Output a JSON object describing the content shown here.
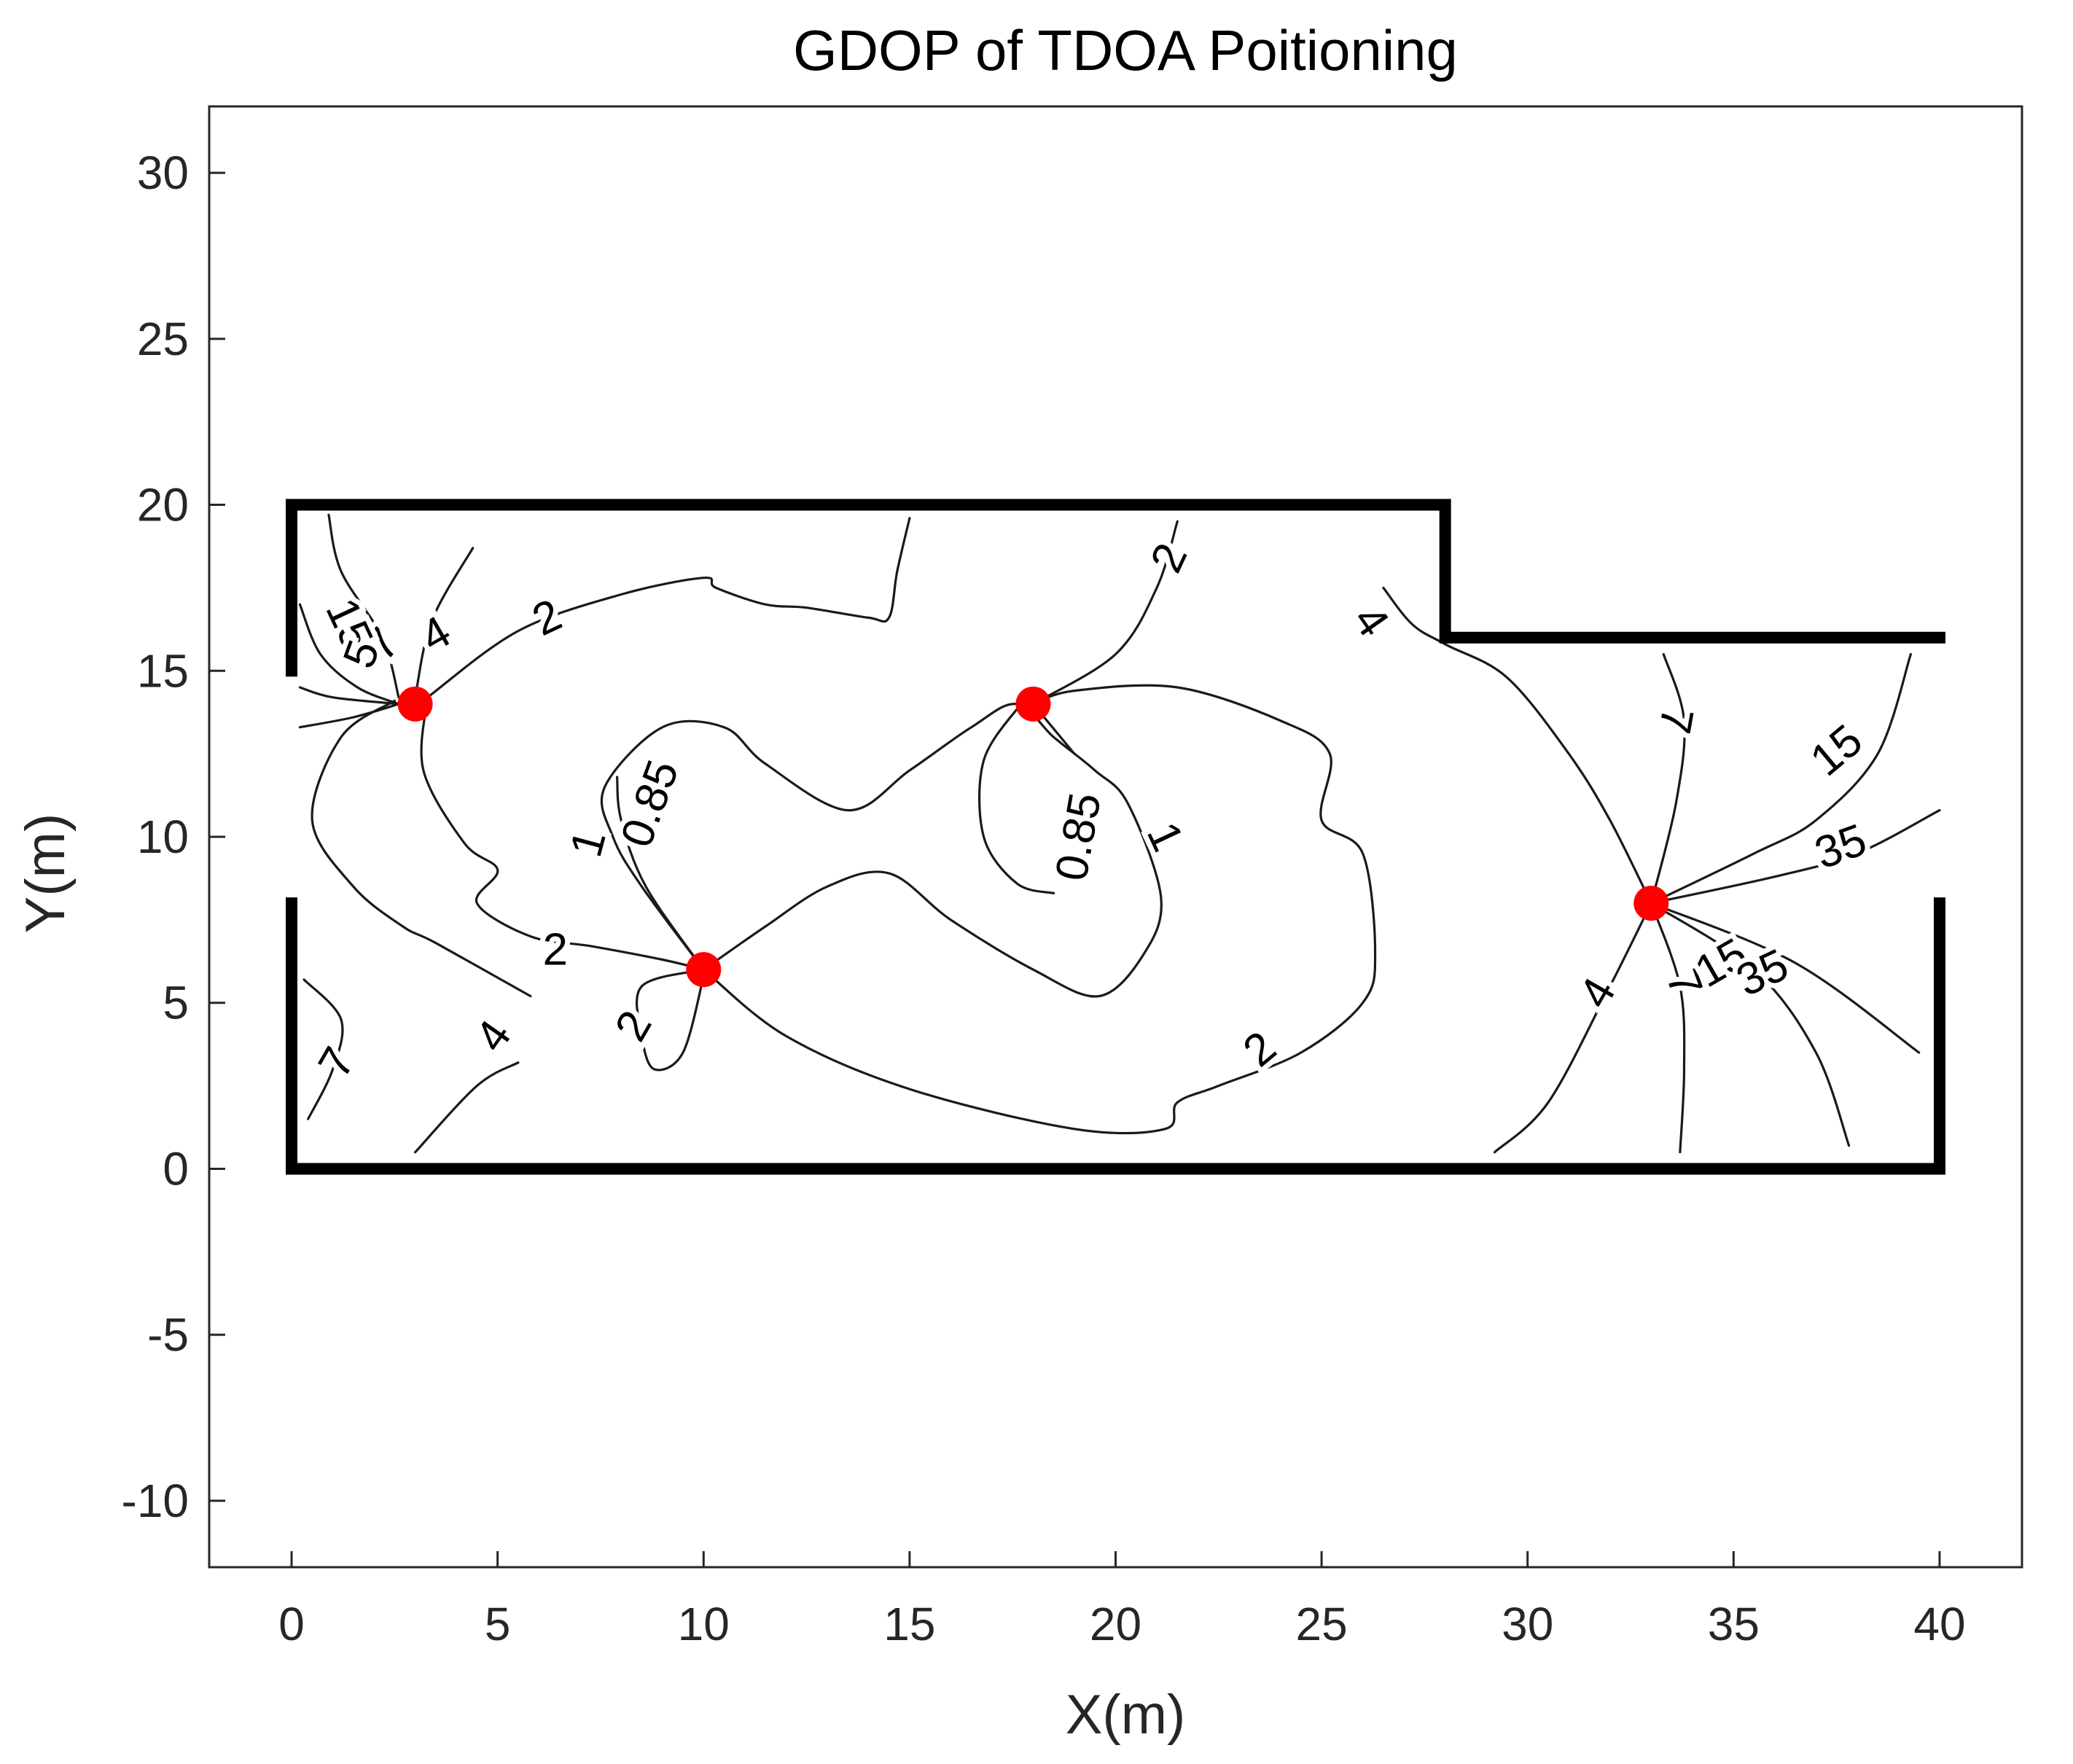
{
  "chart_data": {
    "type": "contour",
    "title": "GDOP of TDOA Poitioning",
    "xlabel": "X(m)",
    "ylabel": "Y(m)",
    "xlim": [
      -2,
      42
    ],
    "ylim": [
      -12,
      32
    ],
    "x_ticks": [
      0,
      5,
      10,
      15,
      20,
      25,
      30,
      35,
      40
    ],
    "y_ticks": [
      -10,
      -5,
      0,
      5,
      10,
      15,
      20,
      25,
      30
    ],
    "grid": false,
    "colors": {
      "anchor": "#ff0000",
      "wall": "#000000",
      "contour": "#1a1a1a"
    },
    "anchors": [
      {
        "x": 3,
        "y": 14
      },
      {
        "x": 10,
        "y": 6
      },
      {
        "x": 18,
        "y": 14
      },
      {
        "x": 33,
        "y": 8
      }
    ],
    "walls": [
      [
        [
          0,
          15
        ],
        [
          0,
          20
        ],
        [
          28,
          20
        ],
        [
          28,
          16
        ],
        [
          40,
          16
        ]
      ],
      [
        [
          0,
          8
        ],
        [
          0,
          0
        ],
        [
          40,
          0
        ],
        [
          40,
          8
        ]
      ]
    ],
    "contour_levels": [
      0.85,
      1,
      2,
      4,
      7,
      15,
      35
    ],
    "contour_lines": [
      {
        "level": "2",
        "points": [
          [
            3.3,
            14.2
          ],
          [
            5.5,
            16.2
          ],
          [
            8,
            17.3
          ],
          [
            10,
            17.8
          ],
          [
            10.3,
            17.5
          ],
          [
            11.5,
            17
          ],
          [
            12.5,
            16.9
          ],
          [
            14,
            16.6
          ],
          [
            14.5,
            16.6
          ],
          [
            14.7,
            18
          ],
          [
            15,
            19.6
          ]
        ]
      },
      {
        "level": "2",
        "points": [
          [
            3.3,
            14.2
          ],
          [
            3.2,
            12
          ],
          [
            4.2,
            9.8
          ],
          [
            5,
            9
          ],
          [
            4.5,
            8
          ],
          [
            5.8,
            7
          ],
          [
            7.3,
            6.7
          ],
          [
            9,
            6.3
          ],
          [
            10,
            6
          ]
        ]
      },
      {
        "level": "2",
        "points": [
          [
            2.5,
            14.1
          ],
          [
            1.2,
            13
          ],
          [
            0.5,
            10.5
          ],
          [
            1.5,
            8.5
          ],
          [
            2.7,
            7.3
          ],
          [
            3.5,
            6.8
          ],
          [
            5.8,
            5.2
          ]
        ]
      },
      {
        "level": "2",
        "points": [
          [
            10,
            6
          ],
          [
            12,
            4
          ],
          [
            15,
            2.4
          ],
          [
            19,
            1.2
          ],
          [
            21.2,
            1.2
          ],
          [
            21.5,
            2
          ],
          [
            22.5,
            2.5
          ],
          [
            24.5,
            3.5
          ],
          [
            26,
            5
          ],
          [
            26.3,
            6.5
          ],
          [
            26,
            9.5
          ],
          [
            25,
            10.5
          ],
          [
            25.2,
            12.5
          ],
          [
            24,
            13.5
          ],
          [
            21.5,
            14.5
          ],
          [
            19,
            14.4
          ],
          [
            18,
            14
          ]
        ]
      },
      {
        "level": "2",
        "points": [
          [
            18,
            14
          ],
          [
            20,
            15.5
          ],
          [
            21,
            17.5
          ],
          [
            21.5,
            19.5
          ]
        ]
      },
      {
        "level": "2",
        "points": [
          [
            10,
            6
          ],
          [
            8.5,
            5.5
          ],
          [
            8.5,
            4
          ],
          [
            8.8,
            3
          ],
          [
            9.5,
            3.5
          ],
          [
            10,
            5.8
          ]
        ]
      },
      {
        "level": "1",
        "points": [
          [
            10,
            6
          ],
          [
            8.5,
            8.5
          ],
          [
            7.8,
            10
          ],
          [
            7.6,
            11.5
          ],
          [
            9,
            13.3
          ],
          [
            10.5,
            13.3
          ],
          [
            11.5,
            12.2
          ],
          [
            13.5,
            10.8
          ],
          [
            15,
            12
          ],
          [
            16.5,
            13.3
          ],
          [
            17.6,
            14
          ],
          [
            18.5,
            13
          ],
          [
            19.5,
            12
          ],
          [
            20.3,
            11
          ],
          [
            21.1,
            8.2
          ],
          [
            20.7,
            6.5
          ],
          [
            19.6,
            5.2
          ],
          [
            18,
            6
          ],
          [
            16,
            7.5
          ],
          [
            14.5,
            8.9
          ],
          [
            13,
            8.5
          ],
          [
            11.5,
            7.3
          ],
          [
            10,
            6
          ]
        ]
      },
      {
        "level": "0.85",
        "points": [
          [
            10,
            6
          ],
          [
            8.6,
            8.5
          ],
          [
            8,
            10.5
          ],
          [
            7.9,
            11.8
          ]
        ]
      },
      {
        "level": "0.85",
        "points": [
          [
            17.7,
            14
          ],
          [
            16.8,
            12.3
          ],
          [
            16.8,
            10
          ],
          [
            17.6,
            8.6
          ],
          [
            18.5,
            8.3
          ]
        ]
      },
      {
        "level": "0.85",
        "points": [
          [
            18,
            14
          ],
          [
            19,
            12.5
          ]
        ]
      },
      {
        "level": "4",
        "points": [
          [
            3,
            0.5
          ],
          [
            4.5,
            2.5
          ],
          [
            5.5,
            3.2
          ]
        ]
      },
      {
        "level": "4",
        "points": [
          [
            26.5,
            17.5
          ],
          [
            27.2,
            16.4
          ],
          [
            28,
            15.8
          ],
          [
            29.5,
            14.8
          ],
          [
            31,
            12.5
          ],
          [
            32,
            10.5
          ],
          [
            33,
            8
          ]
        ]
      },
      {
        "level": "4",
        "points": [
          [
            33,
            8
          ],
          [
            32,
            5.5
          ],
          [
            30.5,
            2
          ],
          [
            29.2,
            0.5
          ]
        ]
      },
      {
        "level": "7",
        "points": [
          [
            33,
            8
          ],
          [
            33.6,
            11
          ],
          [
            33.8,
            13.5
          ],
          [
            33.3,
            15.5
          ]
        ]
      },
      {
        "level": "7",
        "points": [
          [
            33,
            8
          ],
          [
            33.7,
            5.5
          ],
          [
            33.8,
            3
          ],
          [
            33.7,
            0.5
          ]
        ]
      },
      {
        "level": "7",
        "points": [
          [
            0.3,
            5.7
          ],
          [
            1.2,
            4.5
          ],
          [
            1,
            3
          ],
          [
            0.4,
            1.5
          ]
        ]
      },
      {
        "level": "15",
        "points": [
          [
            33,
            8
          ],
          [
            35.5,
            9.5
          ],
          [
            37,
            10.5
          ],
          [
            38.5,
            12.5
          ],
          [
            39.3,
            15.5
          ]
        ]
      },
      {
        "level": "15",
        "points": [
          [
            33,
            8
          ],
          [
            35.5,
            6
          ],
          [
            37,
            3.5
          ],
          [
            37.8,
            0.7
          ]
        ]
      },
      {
        "level": "35",
        "points": [
          [
            33,
            8
          ],
          [
            36,
            8.8
          ],
          [
            38,
            9.5
          ],
          [
            40,
            10.8
          ]
        ]
      },
      {
        "level": "35",
        "points": [
          [
            33,
            8
          ],
          [
            36.5,
            6.2
          ],
          [
            39.5,
            3.5
          ]
        ]
      },
      {
        "level": "4",
        "points": [
          [
            2.6,
            14.2
          ],
          [
            2.2,
            16
          ],
          [
            1.2,
            18
          ],
          [
            0.9,
            19.7
          ]
        ]
      },
      {
        "level": "4",
        "points": [
          [
            3,
            14.2
          ],
          [
            3.4,
            16.5
          ],
          [
            4.4,
            18.7
          ]
        ]
      },
      {
        "level": "7",
        "points": [
          [
            2.6,
            14
          ],
          [
            1.6,
            14.5
          ],
          [
            0.7,
            15.5
          ],
          [
            0.2,
            17
          ]
        ]
      },
      {
        "level": "15",
        "points": [
          [
            2.6,
            14
          ],
          [
            1.5,
            13.6
          ],
          [
            0.2,
            13.3
          ]
        ]
      },
      {
        "level": "15",
        "points": [
          [
            2.6,
            14
          ],
          [
            1,
            14.2
          ],
          [
            0.2,
            14.5
          ]
        ]
      }
    ],
    "contour_labels": [
      {
        "text": "2",
        "x": 6.2,
        "y": 16.6,
        "angle": -25
      },
      {
        "text": "2",
        "x": 6.4,
        "y": 6.6,
        "angle": 0
      },
      {
        "text": "2",
        "x": 8.3,
        "y": 4.3,
        "angle": -60
      },
      {
        "text": "2",
        "x": 23.5,
        "y": 3.6,
        "angle": -40
      },
      {
        "text": "2",
        "x": 21.3,
        "y": 18.4,
        "angle": -65
      },
      {
        "text": "0.85",
        "x": 8.7,
        "y": 11,
        "angle": -70
      },
      {
        "text": "0.85",
        "x": 19.1,
        "y": 10,
        "angle": -80
      },
      {
        "text": "1",
        "x": 7.2,
        "y": 9.8,
        "angle": -75
      },
      {
        "text": "1",
        "x": 21.2,
        "y": 10,
        "angle": 65
      },
      {
        "text": "4",
        "x": 4.9,
        "y": 4,
        "angle": -55
      },
      {
        "text": "4",
        "x": 3.5,
        "y": 16.1,
        "angle": -30
      },
      {
        "text": "4",
        "x": 26.2,
        "y": 16.5,
        "angle": 55
      },
      {
        "text": "4",
        "x": 31.7,
        "y": 5.3,
        "angle": -60
      },
      {
        "text": "7",
        "x": 1.1,
        "y": 3.2,
        "angle": -60
      },
      {
        "text": "7",
        "x": 33.6,
        "y": 13.5,
        "angle": 100
      },
      {
        "text": "7",
        "x": 33.8,
        "y": 5.6,
        "angle": 70
      },
      {
        "text": "7",
        "x": 2.2,
        "y": 15.8,
        "angle": -50
      },
      {
        "text": "15",
        "x": 37.5,
        "y": 12.6,
        "angle": -40
      },
      {
        "text": "15",
        "x": 1.4,
        "y": 16.4,
        "angle": 65
      },
      {
        "text": "15",
        "x": 34.7,
        "y": 6.2,
        "angle": -30
      },
      {
        "text": "35",
        "x": 37.6,
        "y": 9.7,
        "angle": -20
      },
      {
        "text": "35",
        "x": 35.7,
        "y": 5.9,
        "angle": -25
      },
      {
        "text": "5",
        "x": 1.7,
        "y": 15.5,
        "angle": -70
      }
    ]
  }
}
